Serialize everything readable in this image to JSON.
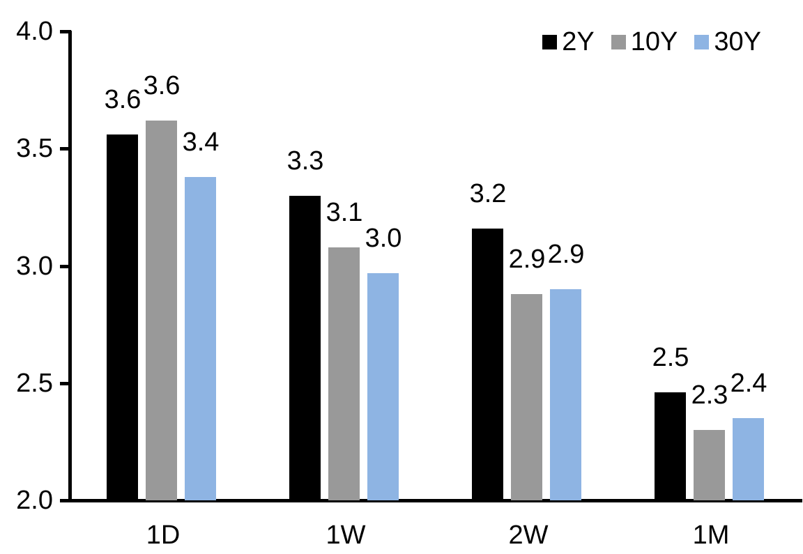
{
  "chart_data": {
    "type": "bar",
    "title": "",
    "xlabel": "",
    "ylabel": "",
    "categories": [
      "1D",
      "1W",
      "2W",
      "1M"
    ],
    "series": [
      {
        "name": "2Y",
        "color": "#000000",
        "values": [
          3.56,
          3.3,
          3.16,
          2.46
        ],
        "labels": [
          "3.6",
          "3.3",
          "3.2",
          "2.5"
        ]
      },
      {
        "name": "10Y",
        "color": "#999999",
        "values": [
          3.62,
          3.08,
          2.88,
          2.3
        ],
        "labels": [
          "3.6",
          "3.1",
          "2.9",
          "2.3"
        ]
      },
      {
        "name": "30Y",
        "color": "#8EB4E3",
        "values": [
          3.38,
          2.97,
          2.9,
          2.35
        ],
        "labels": [
          "3.4",
          "3.0",
          "2.9",
          "2.4"
        ]
      }
    ],
    "ylim": [
      2.0,
      4.0
    ],
    "yticks": [
      "2.0",
      "2.5",
      "3.0",
      "3.5",
      "4.0"
    ],
    "grid": false,
    "legend_position": "top-right",
    "background": "#FFFFFF",
    "axis_color": "#000000",
    "text_color": "#000000"
  }
}
